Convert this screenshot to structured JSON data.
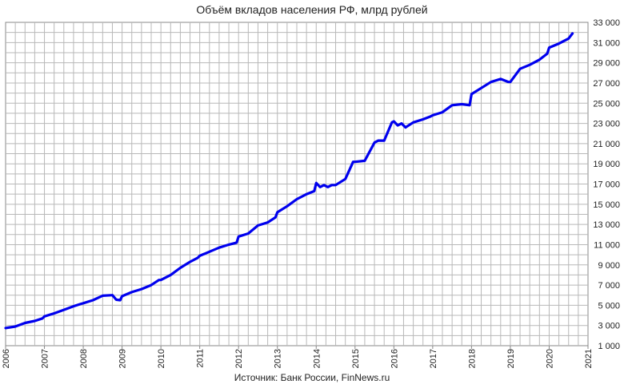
{
  "chart_data": {
    "type": "line",
    "title": "Объём вкладов населения РФ, млрд рублей",
    "source": "Источник: Банк России, FinNews.ru",
    "xlabel": "",
    "ylabel": "",
    "x_tick_labels": [
      "2006",
      "2007",
      "2008",
      "2009",
      "2010",
      "2011",
      "2012",
      "2013",
      "2014",
      "2015",
      "2016",
      "2017",
      "2018",
      "2019",
      "2020",
      "2021"
    ],
    "y_tick_labels": [
      "1 000",
      "3 000",
      "5 000",
      "7 000",
      "9 000",
      "11 000",
      "13 000",
      "15 000",
      "17 000",
      "19 000",
      "21 000",
      "23 000",
      "25 000",
      "27 000",
      "29 000",
      "31 000",
      "33 000"
    ],
    "xlim": [
      2006,
      2021
    ],
    "ylim": [
      1000,
      33000
    ],
    "y_axis_position": "right",
    "grid": true,
    "line_color": "#0000ee",
    "series": [
      {
        "x": [
          2006.0,
          2006.25,
          2006.5,
          2006.75,
          2006.95,
          2007.0,
          2007.25,
          2007.5,
          2007.75,
          2007.95,
          2008.0,
          2008.25,
          2008.5,
          2008.75,
          2008.85,
          2008.95,
          2009.0,
          2009.25,
          2009.5,
          2009.75,
          2009.95,
          2010.0,
          2010.25,
          2010.5,
          2010.75,
          2010.95,
          2011.0,
          2011.25,
          2011.5,
          2011.75,
          2011.95,
          2012.0,
          2012.25,
          2012.5,
          2012.75,
          2012.95,
          2013.0,
          2013.25,
          2013.5,
          2013.75,
          2013.95,
          2014.0,
          2014.1,
          2014.2,
          2014.3,
          2014.4,
          2014.5,
          2014.75,
          2014.95,
          2015.0,
          2015.25,
          2015.5,
          2015.6,
          2015.75,
          2015.95,
          2016.0,
          2016.1,
          2016.2,
          2016.3,
          2016.5,
          2016.75,
          2016.95,
          2017.0,
          2017.25,
          2017.5,
          2017.75,
          2017.95,
          2018.0,
          2018.25,
          2018.5,
          2018.75,
          2018.95,
          2019.0,
          2019.25,
          2019.5,
          2019.75,
          2019.95,
          2020.0,
          2020.25,
          2020.5,
          2020.6
        ],
        "y": [
          2750,
          2900,
          3250,
          3450,
          3700,
          3900,
          4200,
          4550,
          4900,
          5150,
          5200,
          5500,
          5950,
          6000,
          5550,
          5500,
          5900,
          6300,
          6600,
          7000,
          7500,
          7500,
          8000,
          8700,
          9300,
          9700,
          9900,
          10300,
          10700,
          11000,
          11200,
          11800,
          12100,
          12900,
          13200,
          13700,
          14200,
          14800,
          15500,
          16000,
          16300,
          17100,
          16700,
          16900,
          16700,
          16900,
          16900,
          17500,
          19200,
          19200,
          19300,
          21100,
          21300,
          21300,
          23100,
          23200,
          22800,
          23000,
          22600,
          23100,
          23400,
          23700,
          23800,
          24100,
          24800,
          24900,
          24800,
          25900,
          26500,
          27100,
          27400,
          27100,
          27100,
          28400,
          28800,
          29300,
          29900,
          30500,
          30900,
          31400,
          31900
        ]
      }
    ]
  }
}
